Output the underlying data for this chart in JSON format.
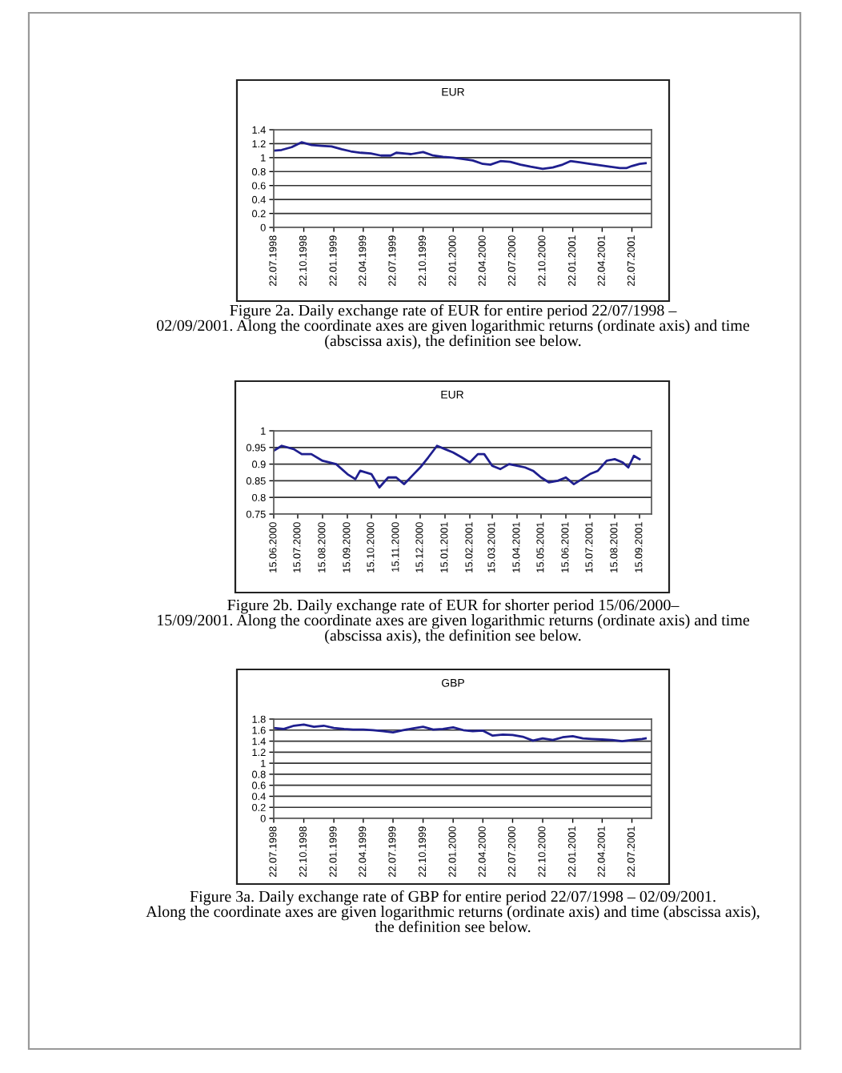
{
  "chart_data": [
    {
      "type": "line",
      "title": "EUR",
      "color": "#1f1f8f",
      "grid": "y",
      "legend": false,
      "marker": "none",
      "line_style": "solid",
      "x": [
        "1998-07-22",
        "1998-08-15",
        "1998-09-15",
        "1998-10-15",
        "1998-11-15",
        "1998-12-15",
        "1999-01-15",
        "1999-02-15",
        "1999-03-15",
        "1999-04-15",
        "1999-05-15",
        "1999-06-15",
        "1999-07-15",
        "1999-08-01",
        "1999-09-15",
        "1999-10-22",
        "1999-11-22",
        "1999-12-22",
        "2000-01-22",
        "2000-02-22",
        "2000-03-22",
        "2000-04-22",
        "2000-05-15",
        "2000-06-15",
        "2000-07-15",
        "2000-08-15",
        "2000-09-15",
        "2000-10-22",
        "2000-11-22",
        "2000-12-22",
        "2001-01-15",
        "2001-02-15",
        "2001-03-15",
        "2001-04-15",
        "2001-05-15",
        "2001-06-15",
        "2001-07-05",
        "2001-07-22",
        "2001-08-15",
        "2001-09-02"
      ],
      "values": [
        1.1,
        1.11,
        1.15,
        1.22,
        1.18,
        1.17,
        1.16,
        1.12,
        1.09,
        1.07,
        1.06,
        1.03,
        1.03,
        1.07,
        1.05,
        1.08,
        1.03,
        1.01,
        1.0,
        0.98,
        0.96,
        0.91,
        0.9,
        0.95,
        0.94,
        0.9,
        0.87,
        0.84,
        0.86,
        0.9,
        0.95,
        0.93,
        0.91,
        0.89,
        0.87,
        0.85,
        0.85,
        0.88,
        0.91,
        0.92
      ],
      "xlim": [
        "1998-07-22",
        "2001-09-20"
      ],
      "ylim": [
        0,
        1.4
      ],
      "yticks": [
        0,
        0.2,
        0.4,
        0.6,
        0.8,
        1,
        1.2,
        1.4
      ],
      "xticks": [
        {
          "value": "1998-07-22",
          "label": "22.07.1998"
        },
        {
          "value": "1998-10-22",
          "label": "22.10.1998"
        },
        {
          "value": "1999-01-22",
          "label": "22.01.1999"
        },
        {
          "value": "1999-04-22",
          "label": "22.04.1999"
        },
        {
          "value": "1999-07-22",
          "label": "22.07.1999"
        },
        {
          "value": "1999-10-22",
          "label": "22.10.1999"
        },
        {
          "value": "2000-01-22",
          "label": "22.01.2000"
        },
        {
          "value": "2000-04-22",
          "label": "22.04.2000"
        },
        {
          "value": "2000-07-22",
          "label": "22.07.2000"
        },
        {
          "value": "2000-10-22",
          "label": "22.10.2000"
        },
        {
          "value": "2001-01-22",
          "label": "22.01.2001"
        },
        {
          "value": "2001-04-22",
          "label": "22.04.2001"
        },
        {
          "value": "2001-07-22",
          "label": "22.07.2001"
        }
      ],
      "annotations": [
        "Figure 2a. Daily exchange rate of EUR for entire period 22/07/1998 –\n02/09/2001. Along the coordinate axes are given logarithmic returns (ordinate axis) and time\n(abscissa axis), the definition see below."
      ]
    },
    {
      "type": "line",
      "title": "EUR",
      "color": "#1f1f8f",
      "grid": "y",
      "legend": false,
      "marker": "none",
      "line_style": "solid",
      "x": [
        "2000-06-15",
        "2000-06-25",
        "2000-07-10",
        "2000-07-20",
        "2000-08-01",
        "2000-08-15",
        "2000-09-01",
        "2000-09-15",
        "2000-09-25",
        "2000-10-01",
        "2000-10-15",
        "2000-10-25",
        "2000-11-05",
        "2000-11-15",
        "2000-11-25",
        "2000-12-05",
        "2000-12-15",
        "2000-12-25",
        "2001-01-05",
        "2001-01-15",
        "2001-01-25",
        "2001-02-05",
        "2001-02-15",
        "2001-02-25",
        "2001-03-05",
        "2001-03-15",
        "2001-03-25",
        "2001-04-05",
        "2001-04-15",
        "2001-04-25",
        "2001-05-05",
        "2001-05-15",
        "2001-05-25",
        "2001-06-05",
        "2001-06-15",
        "2001-06-25",
        "2001-07-05",
        "2001-07-15",
        "2001-07-25",
        "2001-08-05",
        "2001-08-15",
        "2001-08-25",
        "2001-09-01",
        "2001-09-08",
        "2001-09-15"
      ],
      "values": [
        0.94,
        0.955,
        0.945,
        0.93,
        0.93,
        0.91,
        0.9,
        0.87,
        0.855,
        0.88,
        0.87,
        0.83,
        0.86,
        0.86,
        0.84,
        0.865,
        0.89,
        0.92,
        0.955,
        0.945,
        0.935,
        0.92,
        0.905,
        0.93,
        0.93,
        0.895,
        0.885,
        0.9,
        0.895,
        0.89,
        0.88,
        0.86,
        0.845,
        0.85,
        0.86,
        0.84,
        0.855,
        0.87,
        0.88,
        0.91,
        0.915,
        0.905,
        0.89,
        0.925,
        0.915
      ],
      "xlim": [
        "2000-06-15",
        "2001-09-30"
      ],
      "ylim": [
        0.75,
        1
      ],
      "yticks": [
        0.75,
        0.8,
        0.85,
        0.9,
        0.95,
        1
      ],
      "xticks": [
        {
          "value": "2000-06-15",
          "label": "15.06.2000"
        },
        {
          "value": "2000-07-15",
          "label": "15.07.2000"
        },
        {
          "value": "2000-08-15",
          "label": "15.08.2000"
        },
        {
          "value": "2000-09-15",
          "label": "15.09.2000"
        },
        {
          "value": "2000-10-15",
          "label": "15.10.2000"
        },
        {
          "value": "2000-11-15",
          "label": "15.11.2000"
        },
        {
          "value": "2000-12-15",
          "label": "15.12.2000"
        },
        {
          "value": "2001-01-15",
          "label": "15.01.2001"
        },
        {
          "value": "2001-02-15",
          "label": "15.02.2001"
        },
        {
          "value": "2001-03-15",
          "label": "15.03.2001"
        },
        {
          "value": "2001-04-15",
          "label": "15.04.2001"
        },
        {
          "value": "2001-05-15",
          "label": "15.05.2001"
        },
        {
          "value": "2001-06-15",
          "label": "15.06.2001"
        },
        {
          "value": "2001-07-15",
          "label": "15.07.2001"
        },
        {
          "value": "2001-08-15",
          "label": "15.08.2001"
        },
        {
          "value": "2001-09-15",
          "label": "15.09.2001"
        }
      ],
      "annotations": [
        "Figure 2b. Daily exchange rate of EUR for shorter period 15/06/2000–\n15/09/2001. Along the coordinate axes are given logarithmic returns (ordinate axis) and time\n(abscissa axis), the definition see below."
      ]
    },
    {
      "type": "line",
      "title": "GBP",
      "color": "#1f1f8f",
      "grid": "y",
      "legend": false,
      "marker": "none",
      "line_style": "solid",
      "x": [
        "1998-07-22",
        "1998-08-22",
        "1998-09-22",
        "1998-10-22",
        "1998-11-22",
        "1998-12-22",
        "1999-01-22",
        "1999-02-22",
        "1999-03-22",
        "1999-04-22",
        "1999-05-22",
        "1999-06-22",
        "1999-07-22",
        "1999-08-22",
        "1999-09-22",
        "1999-10-22",
        "1999-11-22",
        "1999-12-22",
        "2000-01-22",
        "2000-02-22",
        "2000-03-22",
        "2000-04-22",
        "2000-05-22",
        "2000-06-22",
        "2000-07-22",
        "2000-08-22",
        "2000-09-22",
        "2000-10-22",
        "2000-11-22",
        "2000-12-22",
        "2001-01-22",
        "2001-02-22",
        "2001-03-22",
        "2001-04-22",
        "2001-05-22",
        "2001-06-22",
        "2001-07-22",
        "2001-08-22",
        "2001-09-02"
      ],
      "values": [
        1.64,
        1.62,
        1.68,
        1.7,
        1.66,
        1.68,
        1.64,
        1.62,
        1.61,
        1.61,
        1.6,
        1.58,
        1.56,
        1.6,
        1.63,
        1.66,
        1.61,
        1.62,
        1.65,
        1.6,
        1.58,
        1.59,
        1.5,
        1.52,
        1.51,
        1.48,
        1.41,
        1.45,
        1.42,
        1.47,
        1.49,
        1.45,
        1.44,
        1.43,
        1.42,
        1.4,
        1.42,
        1.44,
        1.45
      ],
      "xlim": [
        "1998-07-22",
        "2001-09-20"
      ],
      "ylim": [
        0,
        1.8
      ],
      "yticks": [
        0,
        0.2,
        0.4,
        0.6,
        0.8,
        1,
        1.2,
        1.4,
        1.6,
        1.8
      ],
      "xticks": [
        {
          "value": "1998-07-22",
          "label": "22.07.1998"
        },
        {
          "value": "1998-10-22",
          "label": "22.10.1998"
        },
        {
          "value": "1999-01-22",
          "label": "22.01.1999"
        },
        {
          "value": "1999-04-22",
          "label": "22.04.1999"
        },
        {
          "value": "1999-07-22",
          "label": "22.07.1999"
        },
        {
          "value": "1999-10-22",
          "label": "22.10.1999"
        },
        {
          "value": "2000-01-22",
          "label": "22.01.2000"
        },
        {
          "value": "2000-04-22",
          "label": "22.04.2000"
        },
        {
          "value": "2000-07-22",
          "label": "22.07.2000"
        },
        {
          "value": "2000-10-22",
          "label": "22.10.2000"
        },
        {
          "value": "2001-01-22",
          "label": "22.01.2001"
        },
        {
          "value": "2001-04-22",
          "label": "22.04.2001"
        },
        {
          "value": "2001-07-22",
          "label": "22.07.2001"
        }
      ],
      "annotations": [
        "Figure 3a. Daily exchange rate of GBP for entire period 22/07/1998 – 02/09/2001.\nAlong the coordinate axes are given logarithmic returns (ordinate axis) and time (abscissa axis),\nthe definition see below."
      ]
    }
  ]
}
